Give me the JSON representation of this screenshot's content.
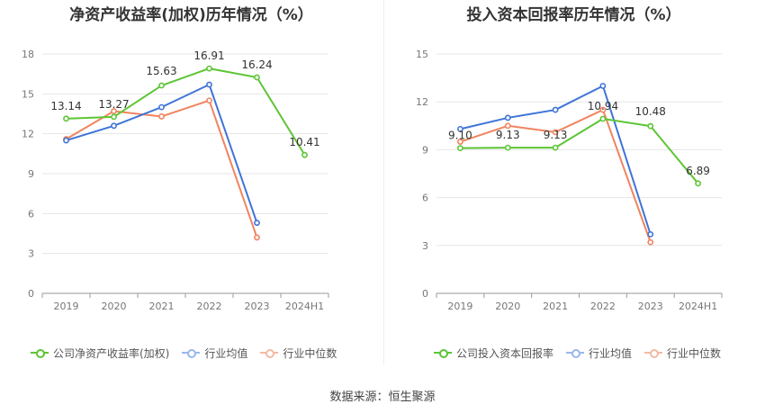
{
  "charts": [
    {
      "title": "净资产收益率(加权)历年情况（%）",
      "chart_data": {
        "type": "line",
        "categories": [
          "2019",
          "2020",
          "2021",
          "2022",
          "2023",
          "2024H1"
        ],
        "yticks": [
          "0",
          "3",
          "6",
          "9",
          "12",
          "15",
          "18"
        ],
        "ylim": [
          0,
          18
        ],
        "series": [
          {
            "name": "公司净资产收益率(加权)",
            "color": "#5dc535",
            "values": [
              13.14,
              13.27,
              15.63,
              16.91,
              16.24,
              10.41
            ],
            "labels": [
              "13.14",
              "13.27",
              "15.63",
              "16.91",
              "16.24",
              "10.41"
            ]
          },
          {
            "name": "行业均值",
            "color": "#3f74d8",
            "values": [
              11.5,
              12.6,
              14.0,
              15.7,
              5.3,
              null
            ]
          },
          {
            "name": "行业中位数",
            "color": "#f0845f",
            "values": [
              11.6,
              13.7,
              13.3,
              14.5,
              4.2,
              null
            ]
          }
        ],
        "grid": true,
        "legend": "bottom-left"
      }
    },
    {
      "title": "投入资本回报率历年情况（%）",
      "chart_data": {
        "type": "line",
        "categories": [
          "2019",
          "2020",
          "2021",
          "2022",
          "2023",
          "2024H1"
        ],
        "yticks": [
          "0",
          "3",
          "6",
          "9",
          "12",
          "15"
        ],
        "ylim": [
          0,
          15
        ],
        "series": [
          {
            "name": "公司投入资本回报率",
            "color": "#5dc535",
            "values": [
              9.1,
              9.13,
              9.13,
              10.94,
              10.48,
              6.89
            ],
            "labels": [
              "9.10",
              "9.13",
              "9.13",
              "10.94",
              "10.48",
              "6.89"
            ]
          },
          {
            "name": "行业均值",
            "color": "#3f74d8",
            "values": [
              10.3,
              11.0,
              11.5,
              13.0,
              3.7,
              null
            ]
          },
          {
            "name": "行业中位数",
            "color": "#f0845f",
            "values": [
              9.5,
              10.5,
              10.1,
              11.5,
              3.2,
              null
            ]
          }
        ],
        "grid": true,
        "legend": "bottom-left"
      }
    }
  ],
  "footer": {
    "source": "数据来源：恒生聚源"
  }
}
